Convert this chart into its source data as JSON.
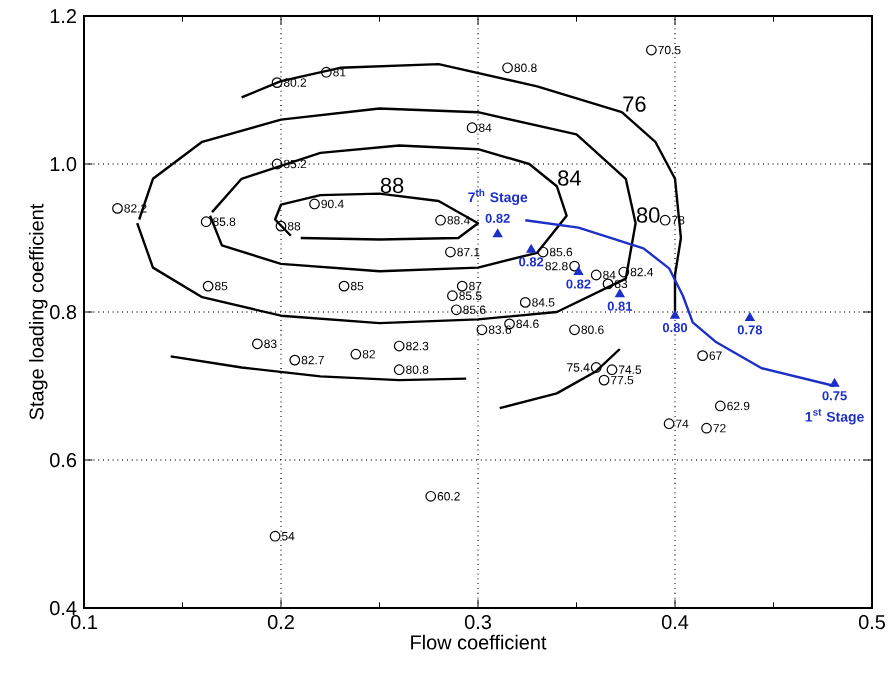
{
  "chart_data": {
    "type": "scatter",
    "xlabel": "Flow coefficient",
    "ylabel": "Stage loading coefficient",
    "xlim": [
      0.1,
      0.5
    ],
    "ylim": [
      0.4,
      1.2
    ],
    "xticks": [
      0.1,
      0.2,
      0.3,
      0.4,
      0.5
    ],
    "yticks": [
      0.4,
      0.6,
      {
        "value": 1.0,
        "label": "1.0"
      },
      0.8,
      1.2
    ],
    "grid": true,
    "series": [
      {
        "type": "line",
        "name": "88",
        "color": "#000000",
        "marker": "none",
        "x": [
          0.21,
          0.25,
          0.29,
          0.3,
          0.28,
          0.25,
          0.22,
          0.2,
          0.197,
          0.205
        ],
        "values": [
          0.9,
          0.898,
          0.9,
          0.92,
          0.95,
          0.96,
          0.958,
          0.945,
          0.925,
          0.903
        ]
      },
      {
        "type": "line",
        "name": "84",
        "color": "#000000",
        "marker": "none",
        "x": [
          0.164,
          0.17,
          0.2,
          0.25,
          0.3,
          0.33,
          0.345,
          0.34,
          0.326,
          0.3,
          0.26,
          0.22,
          0.18,
          0.165
        ],
        "values": [
          0.93,
          0.89,
          0.865,
          0.855,
          0.86,
          0.88,
          0.93,
          0.97,
          1.0,
          1.02,
          1.025,
          1.015,
          0.98,
          0.935
        ]
      },
      {
        "type": "line",
        "name": "80",
        "color": "#000000",
        "marker": "none",
        "x": [
          0.127,
          0.135,
          0.16,
          0.2,
          0.25,
          0.3,
          0.34,
          0.375,
          0.38,
          0.375,
          0.35,
          0.3,
          0.25,
          0.2,
          0.16,
          0.135,
          0.128
        ],
        "values": [
          0.92,
          0.86,
          0.82,
          0.795,
          0.785,
          0.79,
          0.8,
          0.845,
          0.92,
          0.98,
          1.04,
          1.07,
          1.075,
          1.06,
          1.03,
          0.98,
          0.925
        ]
      },
      {
        "type": "line",
        "name": "76",
        "color": "#000000",
        "marker": "none",
        "x": [
          0.18,
          0.2,
          0.23,
          0.28,
          0.33,
          0.373,
          0.39,
          0.4,
          0.403,
          0.4,
          0.4
        ],
        "values": [
          1.09,
          1.112,
          1.13,
          1.135,
          1.105,
          1.07,
          1.03,
          0.98,
          0.9,
          0.85,
          0.8
        ]
      },
      {
        "type": "line",
        "color": "#000000",
        "marker": "none",
        "x": [
          0.144,
          0.18,
          0.22,
          0.26,
          0.294
        ],
        "values": [
          0.74,
          0.725,
          0.713,
          0.708,
          0.71
        ]
      },
      {
        "type": "line",
        "color": "#000000",
        "marker": "none",
        "x": [
          0.311,
          0.34,
          0.36,
          0.372
        ],
        "values": [
          0.67,
          0.69,
          0.72,
          0.75
        ]
      },
      {
        "color": "#000000",
        "marker": "circle",
        "x": [
          0.198,
          0.223,
          0.198,
          0.117,
          0.217,
          0.162,
          0.2,
          0.163,
          0.232,
          0.281,
          0.286,
          0.292,
          0.287,
          0.289,
          0.188,
          0.207,
          0.238,
          0.26,
          0.26,
          0.276,
          0.197,
          0.388,
          0.315,
          0.297,
          0.395,
          0.333,
          0.349,
          0.36,
          0.366,
          0.374,
          0.324,
          0.316,
          0.302,
          0.349,
          0.36,
          0.368,
          0.364,
          0.414,
          0.423,
          0.397,
          0.416
        ],
        "values": [
          1.11,
          1.124,
          1.0,
          0.94,
          0.946,
          0.922,
          0.916,
          0.835,
          0.835,
          0.924,
          0.881,
          0.835,
          0.822,
          0.803,
          0.757,
          0.735,
          0.743,
          0.754,
          0.722,
          0.551,
          0.497,
          1.154,
          1.13,
          1.049,
          0.924,
          0.881,
          0.862,
          0.85,
          0.838,
          0.854,
          0.813,
          0.784,
          0.776,
          0.776,
          0.725,
          0.722,
          0.708,
          0.741,
          0.673,
          0.649,
          0.643
        ]
      },
      {
        "type": "line",
        "color": "#1c2fc8",
        "marker": "none",
        "x": [
          0.481,
          0.444,
          0.421,
          0.409,
          0.404,
          0.397,
          0.384,
          0.351,
          0.324
        ],
        "values": [
          0.7,
          0.724,
          0.759,
          0.786,
          0.822,
          0.859,
          0.886,
          0.914,
          0.924
        ]
      },
      {
        "color": "#1c2fc8",
        "marker": "triangle",
        "x": [
          0.31,
          0.327,
          0.351,
          0.372,
          0.4,
          0.438,
          0.481
        ],
        "values": [
          0.905,
          0.884,
          0.854,
          0.824,
          0.795,
          0.792,
          0.703
        ]
      }
    ],
    "annotations": [
      {
        "text": "80.2",
        "x": 0.198,
        "y": 1.11
      },
      {
        "text": "81",
        "x": 0.223,
        "y": 1.124
      },
      {
        "text": "85.2",
        "x": 0.198,
        "y": 1.0
      },
      {
        "text": "82.2",
        "x": 0.117,
        "y": 0.94
      },
      {
        "text": "90.4",
        "x": 0.217,
        "y": 0.946
      },
      {
        "text": "85.8",
        "x": 0.162,
        "y": 0.922
      },
      {
        "text": "88",
        "x": 0.2,
        "y": 0.916
      },
      {
        "text": "85",
        "x": 0.163,
        "y": 0.835
      },
      {
        "text": "85",
        "x": 0.232,
        "y": 0.835
      },
      {
        "text": "88.4",
        "x": 0.281,
        "y": 0.924
      },
      {
        "text": "87.1",
        "x": 0.286,
        "y": 0.881
      },
      {
        "text": "87",
        "x": 0.292,
        "y": 0.835
      },
      {
        "text": "85.5",
        "x": 0.287,
        "y": 0.822
      },
      {
        "text": "85.6",
        "x": 0.289,
        "y": 0.803
      },
      {
        "text": "83",
        "x": 0.188,
        "y": 0.757
      },
      {
        "text": "82.7",
        "x": 0.207,
        "y": 0.735
      },
      {
        "text": "82",
        "x": 0.238,
        "y": 0.743
      },
      {
        "text": "82.3",
        "x": 0.26,
        "y": 0.754
      },
      {
        "text": "80.8",
        "x": 0.26,
        "y": 0.722
      },
      {
        "text": "60.2",
        "x": 0.276,
        "y": 0.551
      },
      {
        "text": "54",
        "x": 0.197,
        "y": 0.497
      },
      {
        "text": "70.5",
        "x": 0.388,
        "y": 1.154
      },
      {
        "text": "80.8",
        "x": 0.315,
        "y": 1.13
      },
      {
        "text": "84",
        "x": 0.297,
        "y": 1.049
      },
      {
        "text": "78",
        "x": 0.395,
        "y": 0.924
      },
      {
        "text": "85.6",
        "x": 0.333,
        "y": 0.881
      },
      {
        "text": "82.8",
        "x": 0.349,
        "y": 0.862
      },
      {
        "text": "84",
        "x": 0.36,
        "y": 0.85
      },
      {
        "text": "83",
        "x": 0.366,
        "y": 0.838
      },
      {
        "text": "82.4",
        "x": 0.374,
        "y": 0.854
      },
      {
        "text": "84.5",
        "x": 0.324,
        "y": 0.813
      },
      {
        "text": "84.6",
        "x": 0.316,
        "y": 0.784
      },
      {
        "text": "83.6",
        "x": 0.302,
        "y": 0.776
      },
      {
        "text": "80.6",
        "x": 0.349,
        "y": 0.776
      },
      {
        "text": "75.4",
        "x": 0.36,
        "y": 0.725
      },
      {
        "text": "74.5",
        "x": 0.368,
        "y": 0.722
      },
      {
        "text": "77.5",
        "x": 0.364,
        "y": 0.708
      },
      {
        "text": "67",
        "x": 0.414,
        "y": 0.741
      },
      {
        "text": "62.9",
        "x": 0.423,
        "y": 0.673
      },
      {
        "text": "74",
        "x": 0.397,
        "y": 0.649
      },
      {
        "text": "72",
        "x": 0.416,
        "y": 0.643
      },
      {
        "text": "0.82",
        "x": 0.31,
        "y": 0.905
      },
      {
        "text": "7$^{th}$ Stage",
        "x": 0.31,
        "y": 0.905
      },
      {
        "text": "0.82",
        "x": 0.327,
        "y": 0.884
      },
      {
        "text": "0.82",
        "x": 0.351,
        "y": 0.854
      },
      {
        "text": "0.81",
        "x": 0.372,
        "y": 0.824
      },
      {
        "text": "0.80",
        "x": 0.4,
        "y": 0.795
      },
      {
        "text": "0.78",
        "x": 0.438,
        "y": 0.792
      },
      {
        "text": "0.75",
        "x": 0.481,
        "y": 0.703
      },
      {
        "text": "1$^{st}$ Stage",
        "x": 0.481,
        "y": 0.703
      }
    ]
  }
}
